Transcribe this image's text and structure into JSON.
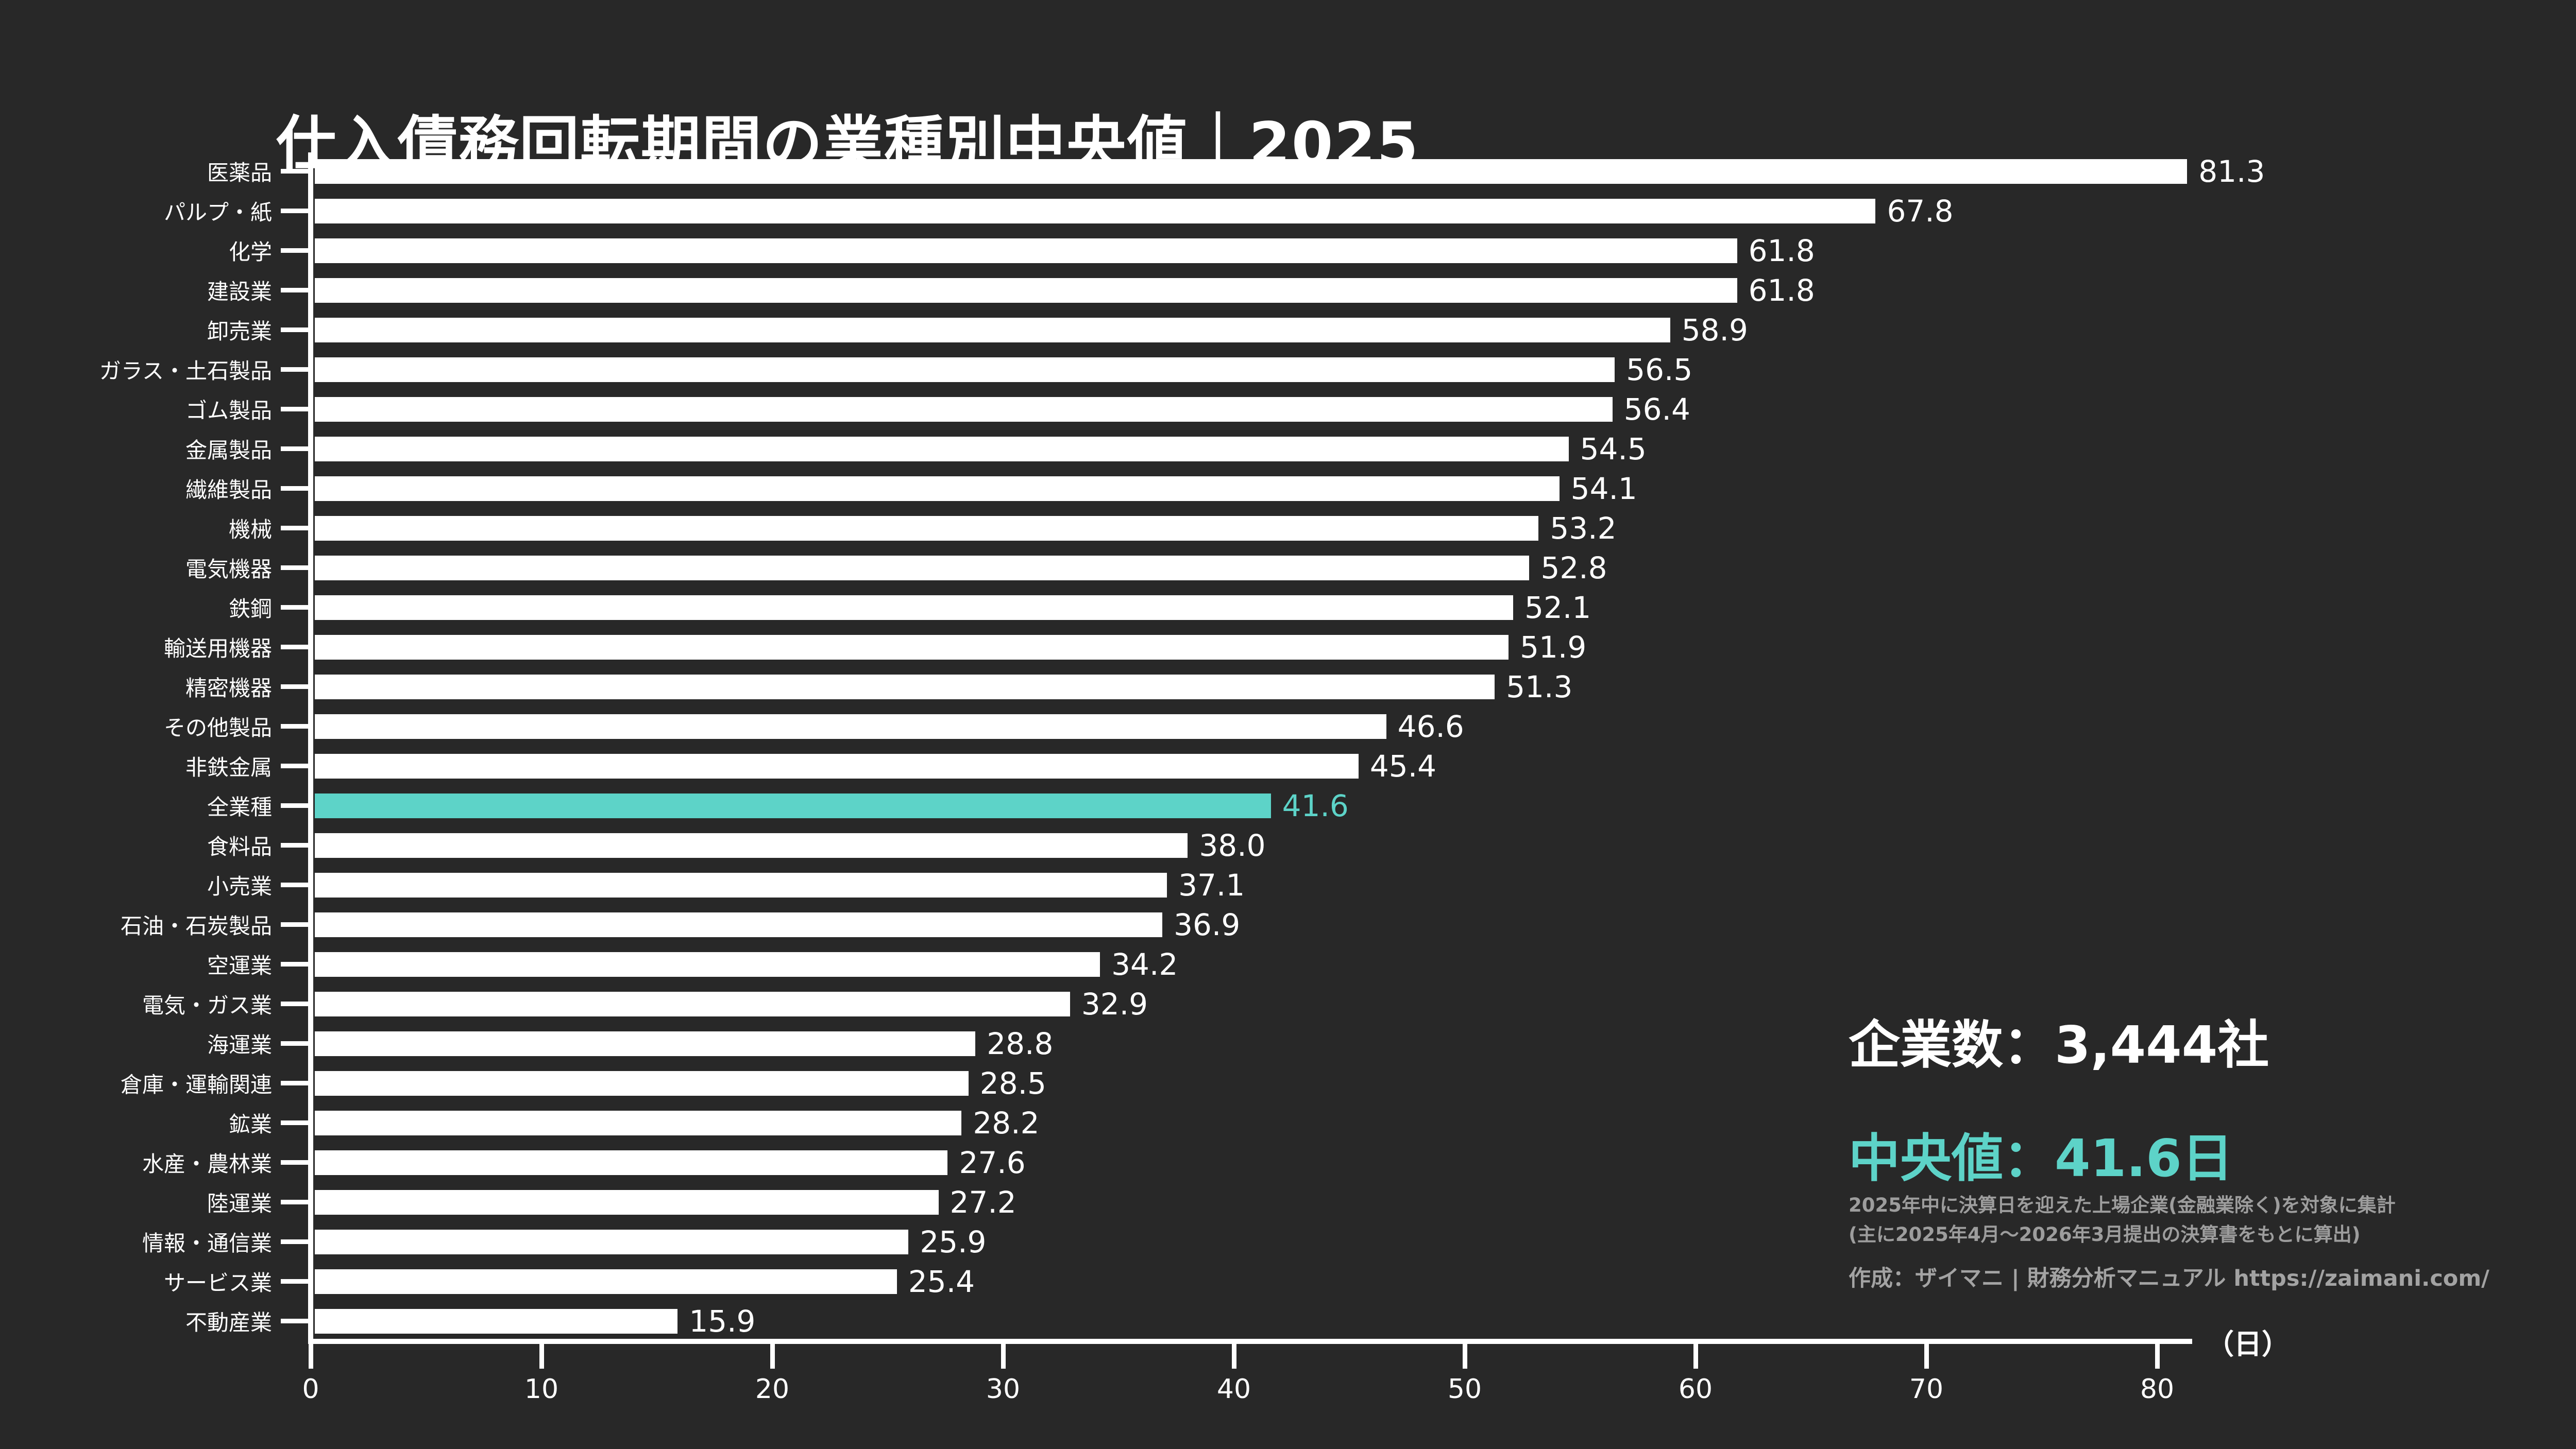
{
  "title": "仕入債務回転期間の業種別中央値｜2025",
  "colors": {
    "background": "#282828",
    "bar": "#ffffff",
    "accent": "#5dd3c8",
    "text": "#ffffff",
    "muted": "#9d9d9d"
  },
  "chart_data": {
    "type": "bar",
    "orientation": "horizontal",
    "title": "仕入債務回転期間の業種別中央値｜2025",
    "unit_label": "（日）",
    "xlabel": "（日）",
    "xlim": [
      0,
      82
    ],
    "xticks": [
      0,
      10,
      20,
      30,
      40,
      50,
      60,
      70,
      80
    ],
    "grid": false,
    "highlight_category": "全業種",
    "categories": [
      "医薬品",
      "パルプ・紙",
      "化学",
      "建設業",
      "卸売業",
      "ガラス・土石製品",
      "ゴム製品",
      "金属製品",
      "繊維製品",
      "機械",
      "電気機器",
      "鉄鋼",
      "輸送用機器",
      "精密機器",
      "その他製品",
      "非鉄金属",
      "全業種",
      "食料品",
      "小売業",
      "石油・石炭製品",
      "空運業",
      "電気・ガス業",
      "海運業",
      "倉庫・運輸関連",
      "鉱業",
      "水産・農林業",
      "陸運業",
      "情報・通信業",
      "サービス業",
      "不動産業"
    ],
    "values": [
      81.3,
      67.8,
      61.8,
      61.8,
      58.9,
      56.5,
      56.4,
      54.5,
      54.1,
      53.2,
      52.8,
      52.1,
      51.9,
      51.3,
      46.6,
      45.4,
      41.6,
      38.0,
      37.1,
      36.9,
      34.2,
      32.9,
      28.8,
      28.5,
      28.2,
      27.6,
      27.2,
      25.9,
      25.4,
      15.9
    ]
  },
  "stats": {
    "companies": "企業数：3,444社",
    "median": "中央値：41.6日"
  },
  "notes": [
    "2025年中に決算日を迎えた上場企業(金融業除く)を対象に集計",
    "(主に2025年4月～2026年3月提出の決算書をもとに算出)"
  ],
  "credit": "作成：ザイマニ | 財務分析マニュアル https://zaimani.com/"
}
